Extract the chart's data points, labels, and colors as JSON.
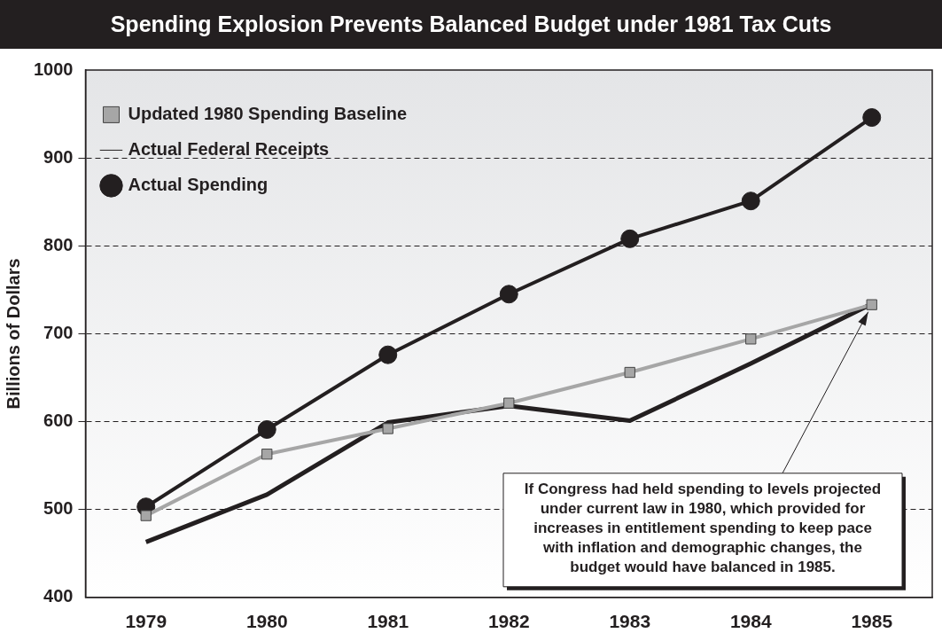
{
  "chart_data": {
    "type": "line",
    "title": "Spending Explosion Prevents Balanced Budget under 1981 Tax Cuts",
    "ylabel": "Billions of Dollars",
    "categories": [
      "1979",
      "1980",
      "1981",
      "1982",
      "1983",
      "1984",
      "1985"
    ],
    "series": [
      {
        "name": "Updated 1980 Spending Baseline",
        "color": "#a6a6a6",
        "marker": "square",
        "values": [
          493,
          563,
          592,
          621,
          656,
          694,
          733
        ]
      },
      {
        "name": "Actual Federal Receipts",
        "color": "#231f20",
        "marker": "none",
        "values": [
          463,
          517,
          599,
          618,
          601,
          666,
          734
        ]
      },
      {
        "name": "Actual Spending",
        "color": "#231f20",
        "marker": "circle",
        "values": [
          503,
          591,
          676,
          745,
          808,
          851,
          946
        ]
      }
    ],
    "ylim": [
      400,
      1000
    ],
    "yticks": [
      400,
      500,
      600,
      700,
      800,
      900,
      1000
    ],
    "grid": "y",
    "legend": "top left",
    "annotations": [
      {
        "text": "If Congress had held spending to levels projected under current law in 1980, which provided for increases in entitlement spending to keep pace with inflation and demographic changes, the budget would have balanced in 1985.",
        "x": "1985",
        "y": 733
      }
    ]
  }
}
